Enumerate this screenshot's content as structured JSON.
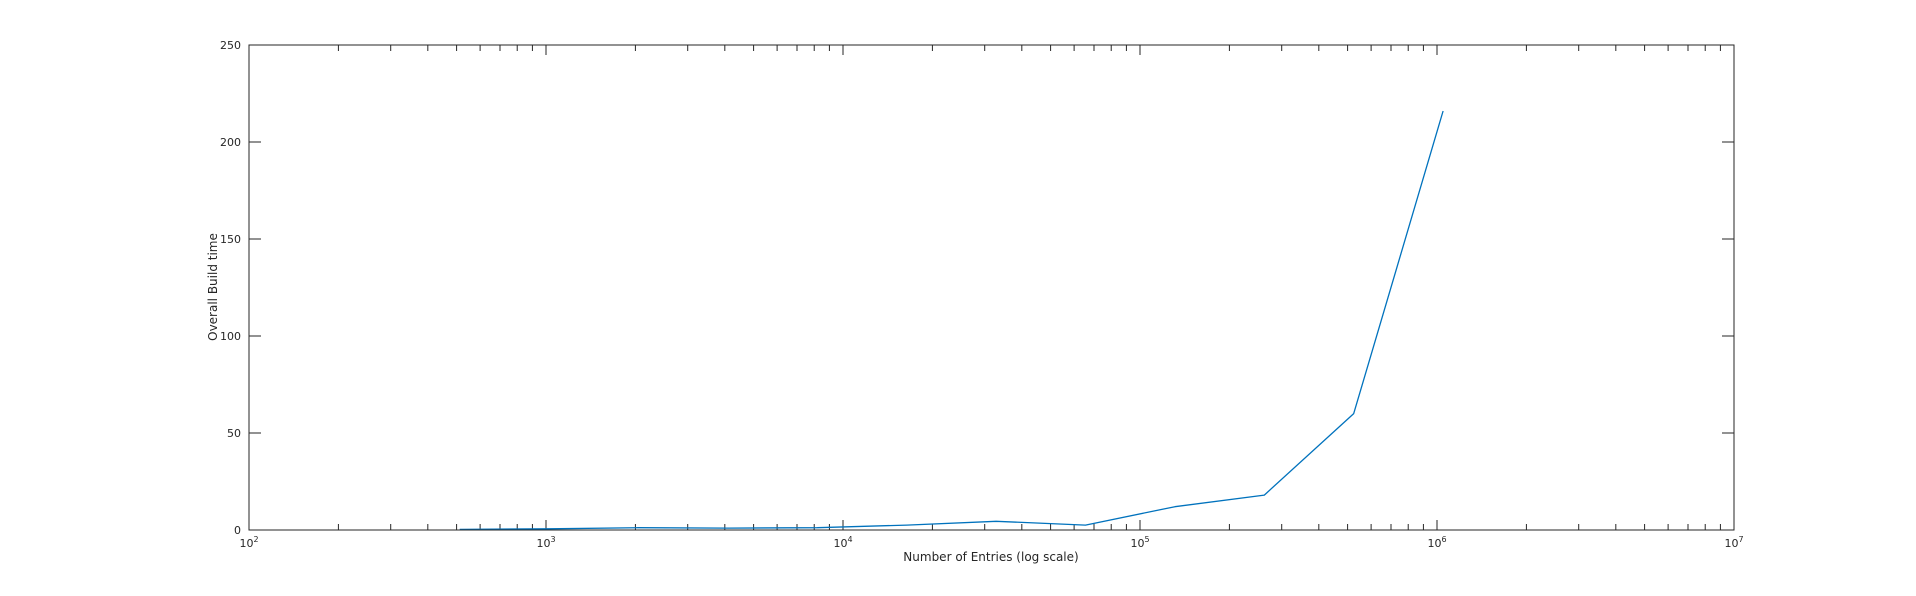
{
  "chart_data": {
    "type": "line",
    "title": "",
    "xlabel": "Number of Entries (log scale)",
    "ylabel": "Overall Build time",
    "x_scale": "log",
    "xlim": [
      100,
      10000000
    ],
    "ylim": [
      0,
      250
    ],
    "grid": false,
    "x_tick_labels": [
      {
        "value": 100,
        "base": "10",
        "exp": "2"
      },
      {
        "value": 1000,
        "base": "10",
        "exp": "3"
      },
      {
        "value": 10000,
        "base": "10",
        "exp": "4"
      },
      {
        "value": 100000,
        "base": "10",
        "exp": "5"
      },
      {
        "value": 1000000,
        "base": "10",
        "exp": "6"
      },
      {
        "value": 10000000,
        "base": "10",
        "exp": "7"
      }
    ],
    "y_ticks": [
      0,
      50,
      100,
      150,
      200,
      250
    ],
    "series": [
      {
        "color": "#0072BD",
        "x": [
          512,
          1024,
          2048,
          4096,
          8192,
          16384,
          32768,
          65536,
          131072,
          262144,
          524288,
          1048576
        ],
        "values": [
          0.3,
          0.6,
          1.2,
          1.0,
          1.2,
          2.5,
          4.5,
          2.5,
          12,
          18,
          60,
          216
        ]
      }
    ]
  }
}
